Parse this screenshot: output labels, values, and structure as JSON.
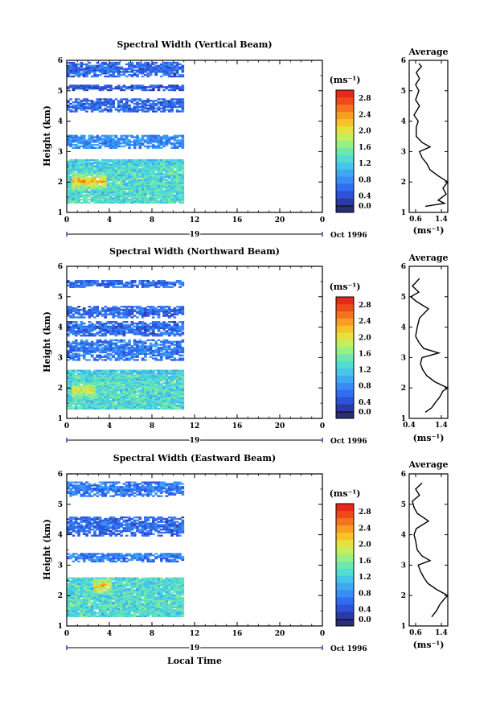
{
  "page": {
    "bottom_xlabel": "Local Time"
  },
  "colorbar": {
    "unit_label": "(ms⁻¹)",
    "ticks": [
      "0.0",
      "0.4",
      "0.8",
      "1.2",
      "1.6",
      "2.0",
      "2.4",
      "2.8"
    ],
    "colors": [
      "#2a2e74",
      "#2b3aa6",
      "#2c52d8",
      "#2f6ef0",
      "#3a8cf5",
      "#3fa8f2",
      "#45c6e9",
      "#52dcd2",
      "#6fe8ae",
      "#97ef86",
      "#c3ef5f",
      "#e6e13f",
      "#f6c42a",
      "#f99e23",
      "#f5741f",
      "#ee4b1d",
      "#e52a1d"
    ],
    "range": [
      0,
      3.0
    ]
  },
  "date_label": "Oct 1996",
  "day_label": "19",
  "x_ticks": [
    "0",
    "4",
    "8",
    "12",
    "16",
    "20",
    "0"
  ],
  "y_ticks": [
    "1",
    "2",
    "3",
    "4",
    "5",
    "6"
  ],
  "profile_title": "Average",
  "profile_xlabel": "(ms⁻¹)",
  "chart_data": [
    {
      "type": "heatmap",
      "title": "Spectral Width (Vertical Beam)",
      "ylabel": "Height (km)",
      "xlim": [
        0,
        24
      ],
      "ylim": [
        1,
        6
      ],
      "data_extent_hours": [
        0,
        11
      ],
      "layers": [
        {
          "height_range": [
            1.3,
            2.75
          ],
          "width_ms": 1.2,
          "max_ms": 2.6,
          "peak_hours": [
            0.5,
            3.5
          ],
          "peak_height": 2.0
        },
        {
          "height_range": [
            3.1,
            3.55
          ],
          "width_ms": 0.8
        },
        {
          "height_range": [
            4.3,
            4.75
          ],
          "width_ms": 0.6
        },
        {
          "height_range": [
            5.0,
            5.2
          ],
          "width_ms": 0.5
        },
        {
          "height_range": [
            5.45,
            5.95
          ],
          "width_ms": 0.6
        }
      ],
      "profile": {
        "title": "Average",
        "xlabel": "(ms⁻¹)",
        "xlim": [
          0.4,
          1.6
        ],
        "xticks": [
          0.6,
          1.4
        ],
        "heights": [
          1.2,
          1.3,
          1.4,
          1.6,
          1.8,
          2.0,
          2.2,
          2.4,
          2.6,
          2.8,
          3.0,
          3.15,
          3.3,
          3.5,
          3.8,
          4.0,
          4.2,
          4.5,
          4.7,
          5.0,
          5.2,
          5.4,
          5.6,
          5.8,
          5.9
        ],
        "values": [
          0.9,
          1.5,
          1.3,
          1.55,
          1.45,
          1.6,
          1.3,
          1.05,
          0.95,
          0.8,
          0.72,
          1.05,
          0.8,
          0.62,
          0.62,
          0.68,
          0.55,
          0.72,
          0.6,
          0.7,
          0.6,
          0.72,
          0.62,
          0.78,
          0.7
        ]
      }
    },
    {
      "type": "heatmap",
      "title": "Spectral Width (Northward Beam)",
      "ylabel": "Height (km)",
      "xlim": [
        0,
        24
      ],
      "ylim": [
        1,
        6
      ],
      "data_extent_hours": [
        0,
        11
      ],
      "layers": [
        {
          "height_range": [
            1.3,
            2.6
          ],
          "width_ms": 1.2,
          "max_ms": 2.2,
          "peak_hours": [
            0.5,
            2.5
          ],
          "peak_height": 1.9
        },
        {
          "height_range": [
            2.9,
            3.6
          ],
          "width_ms": 0.7
        },
        {
          "height_range": [
            3.7,
            4.2
          ],
          "width_ms": 0.6
        },
        {
          "height_range": [
            4.3,
            4.7
          ],
          "width_ms": 0.6
        },
        {
          "height_range": [
            5.3,
            5.55
          ],
          "width_ms": 0.6
        }
      ],
      "profile": {
        "title": "Average",
        "xlabel": "(ms⁻¹)",
        "xlim": [
          0.4,
          1.6
        ],
        "xticks": [
          0.4,
          1.4
        ],
        "heights": [
          1.2,
          1.35,
          1.5,
          1.7,
          1.9,
          2.0,
          2.2,
          2.4,
          2.6,
          2.8,
          3.0,
          3.15,
          3.3,
          3.5,
          3.7,
          4.0,
          4.3,
          4.6,
          4.85,
          5.0,
          5.15,
          5.35,
          5.6
        ],
        "values": [
          0.9,
          1.1,
          1.2,
          1.35,
          1.45,
          1.6,
          1.2,
          0.95,
          0.82,
          0.75,
          0.8,
          1.32,
          0.85,
          0.7,
          0.6,
          0.65,
          0.72,
          1.0,
          0.62,
          0.45,
          0.7,
          0.5,
          0.72
        ]
      }
    },
    {
      "type": "heatmap",
      "title": "Spectral Width (Eastward Beam)",
      "ylabel": "Height (km)",
      "xlim": [
        0,
        24
      ],
      "ylim": [
        1,
        6
      ],
      "data_extent_hours": [
        0,
        11
      ],
      "layers": [
        {
          "height_range": [
            1.3,
            2.6
          ],
          "width_ms": 1.2,
          "max_ms": 2.5,
          "peak_hours": [
            2.5,
            4.0
          ],
          "peak_height": 2.3
        },
        {
          "height_range": [
            3.1,
            3.4
          ],
          "width_ms": 0.7
        },
        {
          "height_range": [
            3.95,
            4.6
          ],
          "width_ms": 0.6
        },
        {
          "height_range": [
            5.25,
            5.75
          ],
          "width_ms": 0.7
        }
      ],
      "profile": {
        "title": "Average",
        "xlabel": "(ms⁻¹)",
        "xlim": [
          0.4,
          1.6
        ],
        "xticks": [
          0.6,
          1.4
        ],
        "heights": [
          1.3,
          1.5,
          1.7,
          1.9,
          2.0,
          2.2,
          2.4,
          2.6,
          2.8,
          3.0,
          3.15,
          3.3,
          3.5,
          3.8,
          4.0,
          4.2,
          4.45,
          4.7,
          4.9,
          5.1,
          5.3,
          5.5,
          5.7
        ],
        "values": [
          1.1,
          1.25,
          1.35,
          1.5,
          1.6,
          1.25,
          0.98,
          0.85,
          0.75,
          0.68,
          1.05,
          0.8,
          0.65,
          0.6,
          0.55,
          0.62,
          1.0,
          0.65,
          0.55,
          0.5,
          0.72,
          0.6,
          0.8
        ]
      }
    }
  ]
}
